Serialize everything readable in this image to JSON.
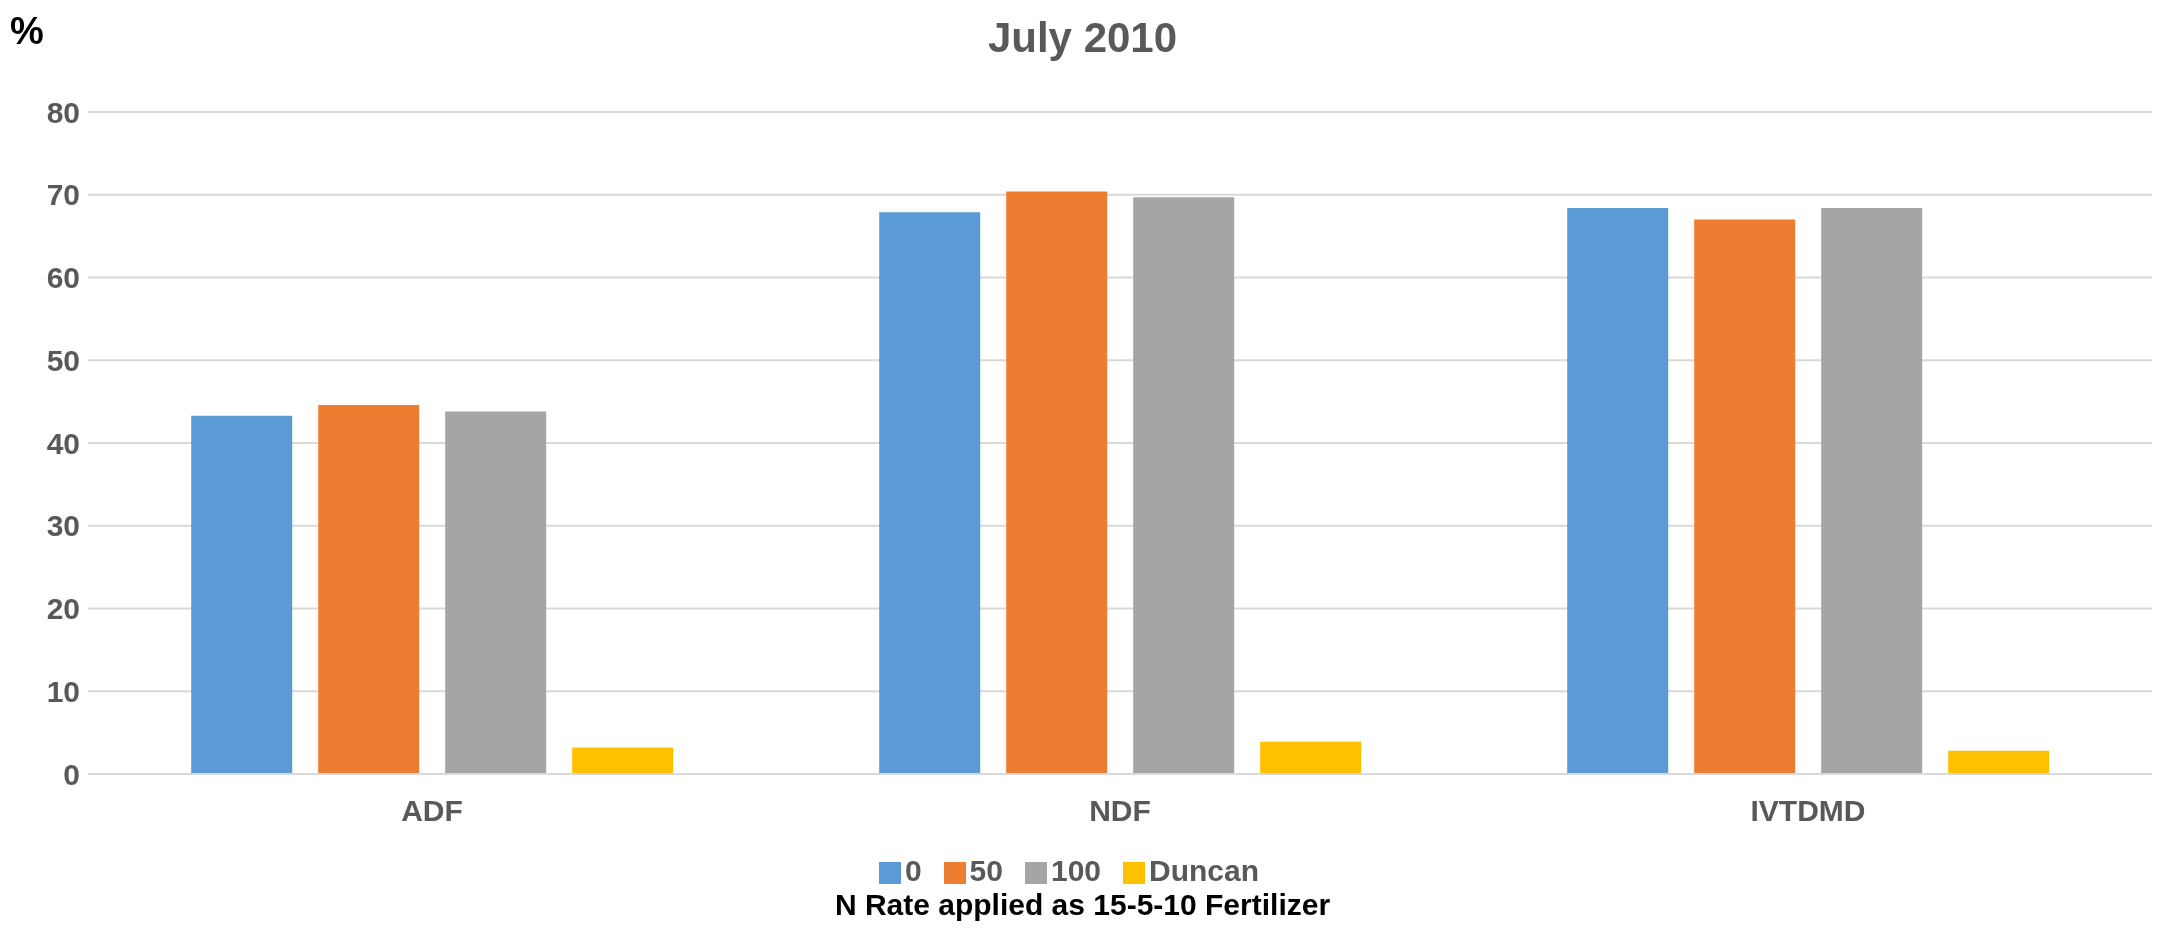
{
  "chart_data": {
    "type": "bar",
    "title": "July 2010",
    "ylabel": "%",
    "xlabel": "N Rate applied as 15-5-10 Fertilizer",
    "categories": [
      "ADF",
      "NDF",
      "IVTDMD"
    ],
    "series": [
      {
        "name": "0",
        "color": "#5b9bd5",
        "values": [
          43.3,
          67.9,
          68.4
        ]
      },
      {
        "name": "50",
        "color": "#ed7d31",
        "values": [
          44.6,
          70.4,
          67.0
        ]
      },
      {
        "name": "100",
        "color": "#a5a5a5",
        "values": [
          43.8,
          69.7,
          68.4
        ]
      },
      {
        "name": "Duncan",
        "color": "#ffc000",
        "values": [
          3.2,
          3.9,
          2.8
        ]
      }
    ],
    "ylim": [
      0,
      80
    ],
    "yticks": [
      0,
      10,
      20,
      30,
      40,
      50,
      60,
      70,
      80
    ],
    "grid": "y",
    "legend": "bottom"
  }
}
